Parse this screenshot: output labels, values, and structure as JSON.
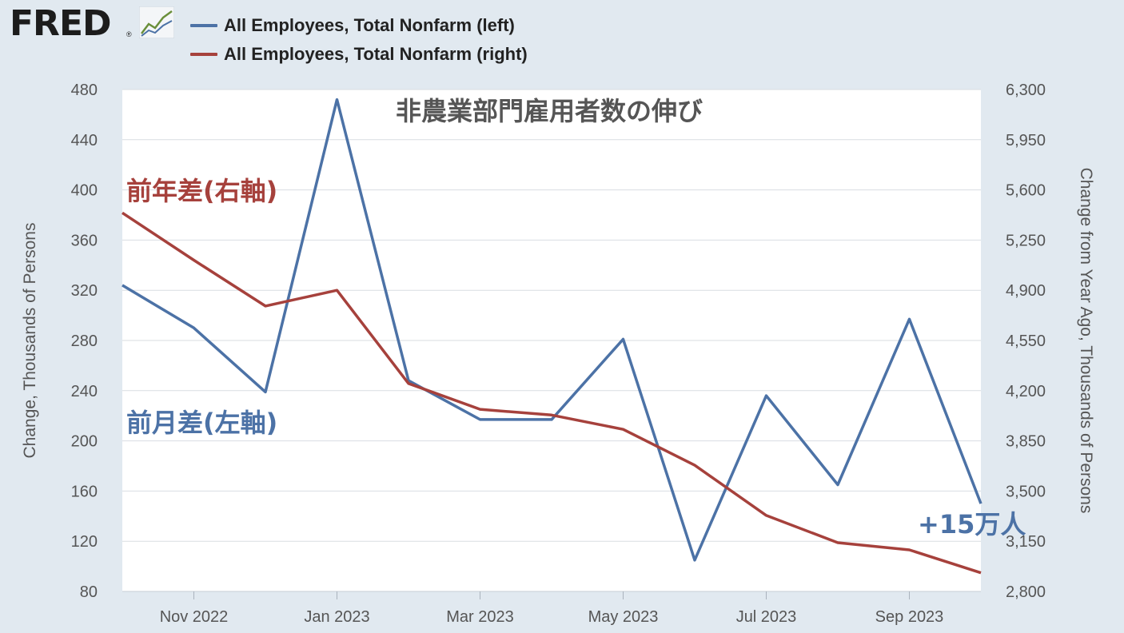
{
  "header": {
    "logo": "FRED",
    "logo_mark": "®",
    "logo_icon": "line-chart-icon"
  },
  "legend": [
    {
      "label": "All Employees, Total Nonfarm (left)",
      "color": "#4c72a6"
    },
    {
      "label": "All Employees, Total Nonfarm (right)",
      "color": "#a6413c"
    }
  ],
  "chart_data": {
    "type": "line",
    "x": [
      "2022-10",
      "2022-11",
      "2022-12",
      "2023-01",
      "2023-02",
      "2023-03",
      "2023-04",
      "2023-05",
      "2023-06",
      "2023-07",
      "2023-08",
      "2023-09",
      "2023-10"
    ],
    "x_tick_labels": [
      {
        "month": "2022-11",
        "label": "Nov 2022"
      },
      {
        "month": "2023-01",
        "label": "Jan 2023"
      },
      {
        "month": "2023-03",
        "label": "Mar 2023"
      },
      {
        "month": "2023-05",
        "label": "May 2023"
      },
      {
        "month": "2023-07",
        "label": "Jul 2023"
      },
      {
        "month": "2023-09",
        "label": "Sep 2023"
      }
    ],
    "series": [
      {
        "name": "All Employees, Total Nonfarm (left)",
        "axis": "left",
        "color": "#4c72a6",
        "values": [
          324,
          290,
          239,
          472,
          248,
          217,
          217,
          281,
          105,
          236,
          165,
          297,
          150
        ]
      },
      {
        "name": "All Employees, Total Nonfarm (right)",
        "axis": "right",
        "color": "#a6413c",
        "values": [
          5440,
          5110,
          4790,
          4900,
          4250,
          4070,
          4030,
          3930,
          3680,
          3330,
          3140,
          3090,
          2930
        ]
      }
    ],
    "left_axis": {
      "title": "Change, Thousands of Persons",
      "ylim": [
        80,
        480
      ],
      "ticks": [
        "80",
        "120",
        "160",
        "200",
        "240",
        "280",
        "320",
        "360",
        "400",
        "440",
        "480"
      ]
    },
    "right_axis": {
      "title": "Change from Year Ago, Thousands of Persons",
      "ylim": [
        2800,
        6300
      ],
      "ticks": [
        "2,800",
        "3,150",
        "3,500",
        "3,850",
        "4,200",
        "4,550",
        "4,900",
        "5,250",
        "5,600",
        "5,950",
        "6,300"
      ]
    },
    "grid": "horizontal",
    "annotations": {
      "title": "非農業部門雇用者数の伸び",
      "red_label": "前年差(右軸)",
      "blue_label": "前月差(左軸)",
      "last_value": "+15万人"
    }
  }
}
